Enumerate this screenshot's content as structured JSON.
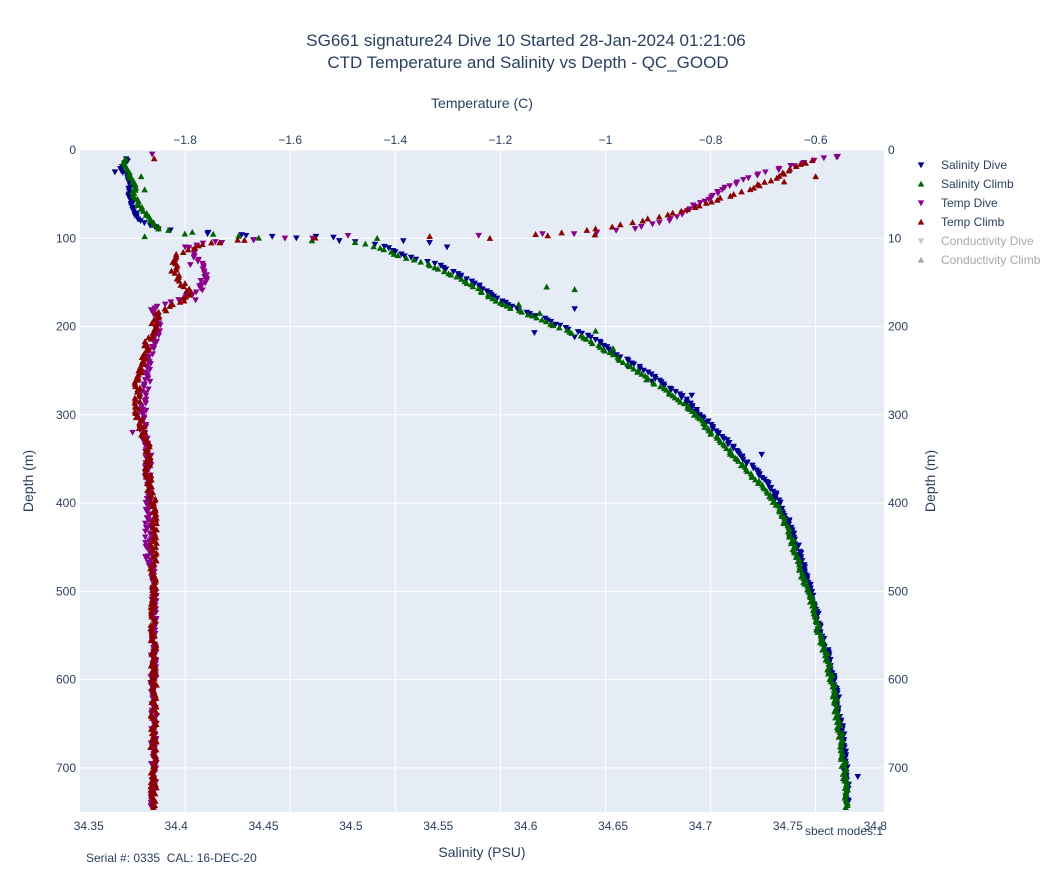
{
  "chart_data": {
    "type": "scatter",
    "title": "SG661 signature24 Dive 10 Started 28-Jan-2024 01:21:06",
    "subtitle": "CTD Temperature and Salinity vs Depth - QC_GOOD",
    "xlabel_bottom": "Salinity (PSU)",
    "xlabel_top": "Temperature (C)",
    "ylabel_left": "Depth (m)",
    "ylabel_right": "Depth (m)",
    "salinity_range": [
      34.345,
      34.805
    ],
    "temperature_range": [
      -2.0,
      -0.47
    ],
    "depth_range": [
      0,
      750
    ],
    "conductivity_range": [
      0,
      75
    ],
    "salinity_ticks": [
      "34.35",
      "34.4",
      "34.45",
      "34.5",
      "34.55",
      "34.6",
      "34.65",
      "34.7",
      "34.75",
      "34.8"
    ],
    "temperature_ticks": [
      "−1.8",
      "−1.6",
      "−1.4",
      "−1.2",
      "−1",
      "−0.8",
      "−0.6"
    ],
    "depth_ticks": [
      "0",
      "100",
      "200",
      "300",
      "400",
      "500",
      "600",
      "700"
    ],
    "conductivity_ticks": [
      "0",
      "10",
      "200",
      "300",
      "400",
      "500",
      "600",
      "700"
    ],
    "grid": true,
    "legend_position": "right",
    "series": [
      {
        "name": "Salinity Dive",
        "axis": "salinity",
        "marker": "triangle-down",
        "color": "#00008b",
        "profile": [
          [
            10,
            34.372
          ],
          [
            20,
            34.368
          ],
          [
            30,
            34.372
          ],
          [
            40,
            34.374
          ],
          [
            50,
            34.373
          ],
          [
            60,
            34.375
          ],
          [
            70,
            34.376
          ],
          [
            80,
            34.38
          ],
          [
            90,
            34.39
          ],
          [
            100,
            34.47
          ],
          [
            105,
            34.51
          ],
          [
            110,
            34.52
          ],
          [
            120,
            34.53
          ],
          [
            130,
            34.55
          ],
          [
            140,
            34.56
          ],
          [
            150,
            34.57
          ],
          [
            160,
            34.578
          ],
          [
            170,
            34.585
          ],
          [
            180,
            34.595
          ],
          [
            190,
            34.61
          ],
          [
            200,
            34.62
          ],
          [
            210,
            34.635
          ],
          [
            220,
            34.645
          ],
          [
            230,
            34.65
          ],
          [
            240,
            34.66
          ],
          [
            250,
            34.668
          ],
          [
            260,
            34.675
          ],
          [
            270,
            34.682
          ],
          [
            280,
            34.69
          ],
          [
            290,
            34.695
          ],
          [
            300,
            34.7
          ],
          [
            320,
            34.71
          ],
          [
            340,
            34.72
          ],
          [
            360,
            34.73
          ],
          [
            380,
            34.74
          ],
          [
            400,
            34.745
          ],
          [
            420,
            34.75
          ],
          [
            440,
            34.754
          ],
          [
            460,
            34.757
          ],
          [
            480,
            34.76
          ],
          [
            500,
            34.763
          ],
          [
            520,
            34.766
          ],
          [
            540,
            34.768
          ],
          [
            560,
            34.771
          ],
          [
            580,
            34.774
          ],
          [
            600,
            34.776
          ],
          [
            620,
            34.778
          ],
          [
            640,
            34.779
          ],
          [
            660,
            34.781
          ],
          [
            680,
            34.782
          ],
          [
            700,
            34.783
          ],
          [
            720,
            34.784
          ],
          [
            740,
            34.784
          ]
        ],
        "outliers": [
          [
            25,
            34.365
          ],
          [
            95,
            34.418
          ],
          [
            97,
            34.44
          ],
          [
            98,
            34.48
          ],
          [
            99,
            34.49
          ],
          [
            103,
            34.53
          ],
          [
            105,
            34.545
          ],
          [
            110,
            34.555
          ],
          [
            180,
            34.628
          ],
          [
            207,
            34.605
          ],
          [
            212,
            34.628
          ],
          [
            245,
            34.658
          ],
          [
            262,
            34.672
          ],
          [
            278,
            34.695
          ],
          [
            345,
            34.735
          ],
          [
            710,
            34.79
          ]
        ]
      },
      {
        "name": "Salinity Climb",
        "axis": "salinity",
        "marker": "triangle-up",
        "color": "#006400",
        "profile": [
          [
            10,
            34.37
          ],
          [
            20,
            34.372
          ],
          [
            30,
            34.374
          ],
          [
            40,
            34.376
          ],
          [
            50,
            34.376
          ],
          [
            60,
            34.378
          ],
          [
            70,
            34.382
          ],
          [
            80,
            34.386
          ],
          [
            90,
            34.39
          ],
          [
            100,
            34.45
          ],
          [
            105,
            34.505
          ],
          [
            110,
            34.515
          ],
          [
            120,
            34.528
          ],
          [
            130,
            34.545
          ],
          [
            140,
            34.557
          ],
          [
            150,
            34.566
          ],
          [
            160,
            34.575
          ],
          [
            170,
            34.582
          ],
          [
            180,
            34.593
          ],
          [
            190,
            34.606
          ],
          [
            200,
            34.618
          ],
          [
            210,
            34.63
          ],
          [
            220,
            34.64
          ],
          [
            230,
            34.648
          ],
          [
            240,
            34.656
          ],
          [
            250,
            34.664
          ],
          [
            260,
            34.67
          ],
          [
            270,
            34.678
          ],
          [
            280,
            34.686
          ],
          [
            290,
            34.692
          ],
          [
            300,
            34.697
          ],
          [
            320,
            34.706
          ],
          [
            340,
            34.716
          ],
          [
            360,
            34.725
          ],
          [
            380,
            34.735
          ],
          [
            400,
            34.743
          ],
          [
            420,
            34.748
          ],
          [
            440,
            34.752
          ],
          [
            460,
            34.755
          ],
          [
            480,
            34.758
          ],
          [
            500,
            34.762
          ],
          [
            520,
            34.765
          ],
          [
            540,
            34.767
          ],
          [
            560,
            34.77
          ],
          [
            580,
            34.773
          ],
          [
            600,
            34.775
          ],
          [
            620,
            34.777
          ],
          [
            640,
            34.778
          ],
          [
            660,
            34.78
          ],
          [
            680,
            34.781
          ],
          [
            700,
            34.782
          ],
          [
            720,
            34.783
          ],
          [
            745,
            34.784
          ]
        ],
        "outliers": [
          [
            30,
            34.38
          ],
          [
            45,
            34.382
          ],
          [
            95,
            34.405
          ],
          [
            98,
            34.382
          ],
          [
            100,
            34.515
          ],
          [
            155,
            34.612
          ],
          [
            158,
            34.628
          ],
          [
            175,
            34.596
          ],
          [
            185,
            34.608
          ],
          [
            205,
            34.64
          ],
          [
            225,
            34.65
          ]
        ]
      },
      {
        "name": "Temp Dive",
        "axis": "temperature",
        "marker": "triangle-down",
        "color": "#8b008b",
        "profile": [
          [
            5,
            -0.54
          ],
          [
            10,
            -0.59
          ],
          [
            20,
            -0.66
          ],
          [
            30,
            -0.72
          ],
          [
            40,
            -0.76
          ],
          [
            50,
            -0.79
          ],
          [
            60,
            -0.82
          ],
          [
            70,
            -0.85
          ],
          [
            80,
            -0.88
          ],
          [
            90,
            -0.95
          ],
          [
            95,
            -1.06
          ],
          [
            97,
            -1.25
          ],
          [
            99,
            -1.44
          ],
          [
            100,
            -1.55
          ],
          [
            102,
            -1.7
          ],
          [
            105,
            -1.76
          ],
          [
            110,
            -1.79
          ],
          [
            120,
            -1.78
          ],
          [
            140,
            -1.76
          ],
          [
            160,
            -1.77
          ],
          [
            180,
            -1.86
          ],
          [
            200,
            -1.85
          ],
          [
            220,
            -1.86
          ],
          [
            240,
            -1.87
          ],
          [
            260,
            -1.87
          ],
          [
            280,
            -1.88
          ],
          [
            300,
            -1.88
          ],
          [
            320,
            -1.88
          ],
          [
            340,
            -1.87
          ],
          [
            360,
            -1.87
          ],
          [
            380,
            -1.87
          ],
          [
            400,
            -1.87
          ],
          [
            420,
            -1.87
          ],
          [
            440,
            -1.87
          ],
          [
            460,
            -1.87
          ],
          [
            480,
            -1.86
          ],
          [
            500,
            -1.86
          ],
          [
            520,
            -1.86
          ],
          [
            540,
            -1.86
          ],
          [
            560,
            -1.86
          ],
          [
            580,
            -1.86
          ],
          [
            600,
            -1.86
          ],
          [
            620,
            -1.86
          ],
          [
            640,
            -1.86
          ],
          [
            660,
            -1.86
          ],
          [
            680,
            -1.86
          ],
          [
            700,
            -1.86
          ],
          [
            720,
            -1.86
          ],
          [
            745,
            -1.86
          ]
        ],
        "outliers": [
          [
            8,
            -0.56
          ],
          [
            18,
            -0.64
          ],
          [
            95,
            -1.12
          ],
          [
            97,
            -1.49
          ],
          [
            100,
            -1.61
          ],
          [
            102,
            -1.67
          ],
          [
            105,
            -1.73
          ],
          [
            110,
            -1.8
          ],
          [
            130,
            -1.79
          ],
          [
            148,
            -1.77
          ],
          [
            170,
            -1.78
          ],
          [
            210,
            -1.85
          ],
          [
            260,
            -1.89
          ],
          [
            300,
            -1.89
          ],
          [
            320,
            -1.9
          ],
          [
            460,
            -1.87
          ]
        ]
      },
      {
        "name": "Temp Climb",
        "axis": "temperature",
        "marker": "triangle-up",
        "color": "#8b0000",
        "profile": [
          [
            10,
            -0.6
          ],
          [
            20,
            -0.64
          ],
          [
            30,
            -0.67
          ],
          [
            40,
            -0.71
          ],
          [
            50,
            -0.75
          ],
          [
            60,
            -0.81
          ],
          [
            70,
            -0.86
          ],
          [
            80,
            -0.93
          ],
          [
            90,
            -1.02
          ],
          [
            95,
            -1.1
          ],
          [
            97,
            -1.25
          ],
          [
            99,
            -1.45
          ],
          [
            100,
            -1.62
          ],
          [
            103,
            -1.71
          ],
          [
            107,
            -1.77
          ],
          [
            112,
            -1.79
          ],
          [
            118,
            -1.82
          ],
          [
            125,
            -1.82
          ],
          [
            140,
            -1.82
          ],
          [
            155,
            -1.8
          ],
          [
            165,
            -1.79
          ],
          [
            175,
            -1.82
          ],
          [
            185,
            -1.85
          ],
          [
            195,
            -1.86
          ],
          [
            205,
            -1.86
          ],
          [
            215,
            -1.87
          ],
          [
            235,
            -1.88
          ],
          [
            260,
            -1.89
          ],
          [
            280,
            -1.89
          ],
          [
            300,
            -1.89
          ],
          [
            320,
            -1.88
          ],
          [
            340,
            -1.87
          ],
          [
            360,
            -1.87
          ],
          [
            380,
            -1.87
          ],
          [
            400,
            -1.86
          ],
          [
            420,
            -1.86
          ],
          [
            440,
            -1.86
          ],
          [
            460,
            -1.86
          ],
          [
            480,
            -1.86
          ],
          [
            500,
            -1.86
          ],
          [
            520,
            -1.86
          ],
          [
            540,
            -1.86
          ],
          [
            560,
            -1.86
          ],
          [
            580,
            -1.86
          ],
          [
            600,
            -1.86
          ],
          [
            620,
            -1.86
          ],
          [
            640,
            -1.86
          ],
          [
            660,
            -1.86
          ],
          [
            680,
            -1.86
          ],
          [
            700,
            -1.86
          ],
          [
            720,
            -1.86
          ],
          [
            745,
            -1.86
          ]
        ],
        "outliers": [
          [
            30,
            -0.6
          ],
          [
            36,
            -0.66
          ],
          [
            96,
            -1.02
          ],
          [
            97,
            -1.11
          ],
          [
            100,
            -1.22
          ],
          [
            102,
            -1.7
          ],
          [
            105,
            -1.75
          ]
        ]
      },
      {
        "name": "Conductivity Dive",
        "axis": "conductivity",
        "marker": "triangle-down",
        "color": "#c8c8c8",
        "legendonly": true,
        "profile": [],
        "outliers": []
      },
      {
        "name": "Conductivity Climb",
        "axis": "conductivity",
        "marker": "triangle-up",
        "color": "#a8a8a8",
        "legendonly": true,
        "profile": [],
        "outliers": []
      }
    ],
    "annotations": {
      "serial": "Serial #: 0335  CAL: 16-DEC-20",
      "modes": "sbect modes:1"
    }
  }
}
